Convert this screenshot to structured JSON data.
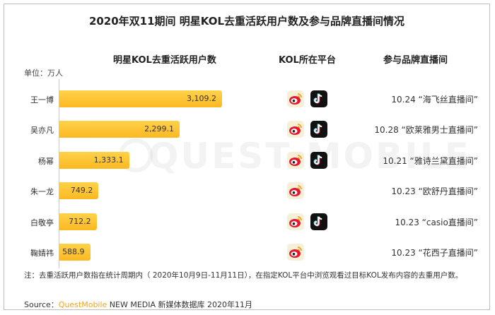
{
  "title": "2020年双11期间 明星KOL去重活跃用户数及参与品牌直播间情况",
  "columns": {
    "users": "明星KOL去重活跃用户数",
    "platform": "KOL所在平台",
    "brand": "参与品牌直播间"
  },
  "unit": "单位：万人",
  "watermark": "QUEST MOBILE",
  "chart_data": {
    "type": "bar",
    "orientation": "horizontal",
    "title": "2020年双11期间 明星KOL去重活跃用户数及参与品牌直播间情况",
    "xlabel": "",
    "ylabel": "",
    "unit": "单位：万人",
    "categories": [
      "王一博",
      "吴亦凡",
      "杨幂",
      "朱一龙",
      "白敬亭",
      "鞠婧祎"
    ],
    "values": [
      3109.2,
      2299.1,
      1333.1,
      749.2,
      712.2,
      588.9
    ],
    "value_labels": [
      "3,109.2",
      "2,299.1",
      "1,333.1",
      "749.2",
      "712.2",
      "588.9"
    ],
    "xlim": [
      0,
      3109.2
    ],
    "grid": false,
    "bar_color": "#fbb822"
  },
  "rows": [
    {
      "platforms": [
        "weibo",
        "douyin"
      ],
      "brand": "10.24 “海飞丝直播间”"
    },
    {
      "platforms": [
        "weibo",
        "douyin"
      ],
      "brand": "10.28 “欧莱雅男士直播间”"
    },
    {
      "platforms": [
        "weibo",
        "douyin"
      ],
      "brand": "10.21 “雅诗兰黛直播间”"
    },
    {
      "platforms": [
        "weibo"
      ],
      "brand": "10.23 “欧舒丹直播间”"
    },
    {
      "platforms": [
        "weibo",
        "douyin"
      ],
      "brand": "10.23 “casio直播间”"
    },
    {
      "platforms": [
        "weibo"
      ],
      "brand": "10.23 “花西子直播间”"
    }
  ],
  "note": "注：去重活跃用户数指在统计周期内（ 2020年10月9日-11月11日），在指定KOL平台中浏览观看过目标KOL发布内容的去重用户数。",
  "source": {
    "prefix": "Source：",
    "brand": "QuestMobile",
    "rest": " NEW MEDIA 新媒体数据库 2020年11月"
  },
  "colors": {
    "bar": "#fbb822",
    "bar_light": "#ffd24a",
    "weibo": "#e6162d",
    "weibo_eye": "#f2a516",
    "douyin_bg": "#111111"
  }
}
